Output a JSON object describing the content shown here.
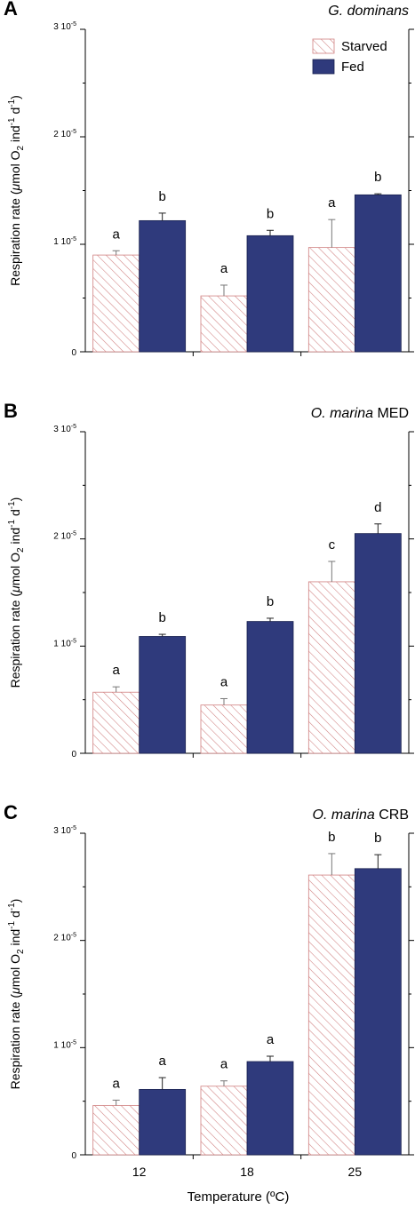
{
  "figure": {
    "xlabel": "Temperature (ºC)",
    "ylabel_parts": {
      "a": "Respiration rate (",
      "mu": "μ",
      "b": "mol O",
      "sub": "2",
      "c": " ind",
      "sup1": "-1",
      "d": " d",
      "sup2": "-1",
      "e": ")"
    },
    "colors": {
      "starved_stroke": "#d08080",
      "fed_fill": "#2f3a7c",
      "axis": "#000000"
    }
  },
  "legend": {
    "starved": "Starved",
    "fed": "Fed"
  },
  "chart_data": [
    {
      "type": "bar",
      "panel_label": "A",
      "title": "G. dominans",
      "title_italic": "G. dominans",
      "title_rest": "",
      "categories": [
        "12",
        "18",
        "25"
      ],
      "ylim": [
        0,
        3e-05
      ],
      "yticks": [
        {
          "value": 0,
          "label": "0",
          "sup": ""
        },
        {
          "value": 1e-05,
          "label": "1 10",
          "sup": "-5"
        },
        {
          "value": 2e-05,
          "label": "2 10",
          "sup": "-5"
        },
        {
          "value": 3e-05,
          "label": "3 10",
          "sup": "-5"
        }
      ],
      "series": [
        {
          "name": "Starved",
          "values": [
            9e-06,
            5.2e-06,
            9.7e-06
          ],
          "errors": [
            4e-07,
            1e-06,
            2.6e-06
          ],
          "letters": [
            "a",
            "a",
            "a"
          ]
        },
        {
          "name": "Fed",
          "values": [
            1.22e-05,
            1.08e-05,
            1.46e-05
          ],
          "errors": [
            7e-07,
            5e-07,
            1e-07
          ],
          "letters": [
            "b",
            "b",
            "b"
          ]
        }
      ]
    },
    {
      "type": "bar",
      "panel_label": "B",
      "title": "O. marina MED",
      "title_italic": "O. marina",
      "title_rest": " MED",
      "categories": [
        "12",
        "18",
        "25"
      ],
      "ylim": [
        0,
        3e-05
      ],
      "yticks": [
        {
          "value": 0,
          "label": "0",
          "sup": ""
        },
        {
          "value": 1e-05,
          "label": "1 10",
          "sup": "-5"
        },
        {
          "value": 2e-05,
          "label": "2 10",
          "sup": "-5"
        },
        {
          "value": 3e-05,
          "label": "3 10",
          "sup": "-5"
        }
      ],
      "series": [
        {
          "name": "Starved",
          "values": [
            5.7e-06,
            4.5e-06,
            1.6e-05
          ],
          "errors": [
            5e-07,
            6e-07,
            1.9e-06
          ],
          "letters": [
            "a",
            "a",
            "c"
          ]
        },
        {
          "name": "Fed",
          "values": [
            1.09e-05,
            1.23e-05,
            2.05e-05
          ],
          "errors": [
            2e-07,
            3e-07,
            9e-07
          ],
          "letters": [
            "b",
            "b",
            "d"
          ]
        }
      ]
    },
    {
      "type": "bar",
      "panel_label": "C",
      "title": "O. marina CRB",
      "title_italic": "O. marina",
      "title_rest": " CRB",
      "categories": [
        "12",
        "18",
        "25"
      ],
      "ylim": [
        0,
        3e-05
      ],
      "yticks": [
        {
          "value": 0,
          "label": "0",
          "sup": ""
        },
        {
          "value": 1e-05,
          "label": "1 10",
          "sup": "-5"
        },
        {
          "value": 2e-05,
          "label": "2 10",
          "sup": "-5"
        },
        {
          "value": 3e-05,
          "label": "3 10",
          "sup": "-5"
        }
      ],
      "series": [
        {
          "name": "Starved",
          "values": [
            4.6e-06,
            6.4e-06,
            2.61e-05
          ],
          "errors": [
            5e-07,
            5e-07,
            2e-06
          ],
          "letters": [
            "a",
            "a",
            "b"
          ]
        },
        {
          "name": "Fed",
          "values": [
            6.1e-06,
            8.7e-06,
            2.67e-05
          ],
          "errors": [
            1.1e-06,
            5e-07,
            1.3e-06
          ],
          "letters": [
            "a",
            "a",
            "b"
          ]
        }
      ]
    }
  ]
}
